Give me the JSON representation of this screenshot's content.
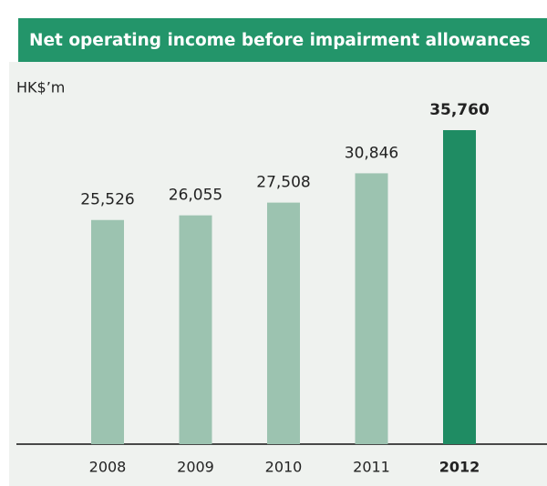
{
  "chart_data": {
    "type": "bar",
    "title": "Net operating income before impairment allowances",
    "unit_label": "HK$’m",
    "categories": [
      "2008",
      "2009",
      "2010",
      "2011",
      "2012"
    ],
    "values": [
      25526,
      26055,
      27508,
      30846,
      35760
    ],
    "value_labels": [
      "25,526",
      "26,055",
      "27,508",
      "30,846",
      "35,760"
    ],
    "colors": [
      "#9cc3b0",
      "#9cc3b0",
      "#9cc3b0",
      "#9cc3b0",
      "#1f8c63"
    ],
    "bold": [
      false,
      false,
      false,
      false,
      true
    ],
    "header_color": "#23956a"
  }
}
